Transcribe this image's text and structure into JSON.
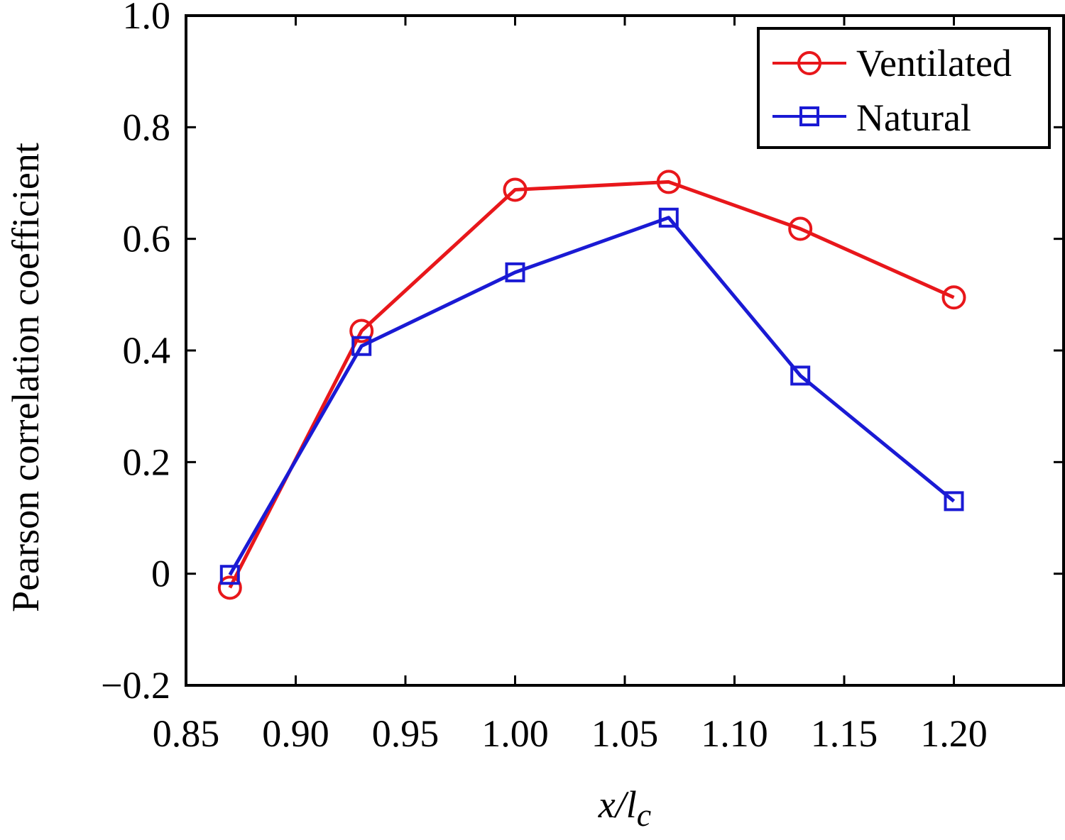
{
  "chart_data": {
    "type": "line",
    "xlabel": "x/l",
    "xlabel_subscript": "c",
    "ylabel": "Pearson correlation coefficient",
    "xlim": [
      0.85,
      1.25
    ],
    "ylim": [
      -0.2,
      1.0
    ],
    "x_ticks": [
      0.85,
      0.9,
      0.95,
      1.0,
      1.05,
      1.1,
      1.15,
      1.2
    ],
    "x_tick_labels": [
      "0.85",
      "0.90",
      "0.95",
      "1.00",
      "1.05",
      "1.10",
      "1.15",
      "1.20"
    ],
    "y_ticks": [
      -0.2,
      0,
      0.2,
      0.4,
      0.6,
      0.8,
      1.0
    ],
    "y_tick_labels": [
      "−0.2",
      "0",
      "0.2",
      "0.4",
      "0.6",
      "0.8",
      "1.0"
    ],
    "grid": false,
    "legend_position": "top-right",
    "series": [
      {
        "name": "Ventilated",
        "color": "#e8171b",
        "marker": "circle",
        "x": [
          0.87,
          0.93,
          1.0,
          1.07,
          1.13,
          1.2
        ],
        "y": [
          -0.025,
          0.435,
          0.688,
          0.702,
          0.618,
          0.495
        ]
      },
      {
        "name": "Natural",
        "color": "#1a1ad4",
        "marker": "square",
        "x": [
          0.87,
          0.93,
          1.0,
          1.07,
          1.13,
          1.2
        ],
        "y": [
          -0.002,
          0.408,
          0.54,
          0.638,
          0.355,
          0.13
        ]
      }
    ]
  }
}
